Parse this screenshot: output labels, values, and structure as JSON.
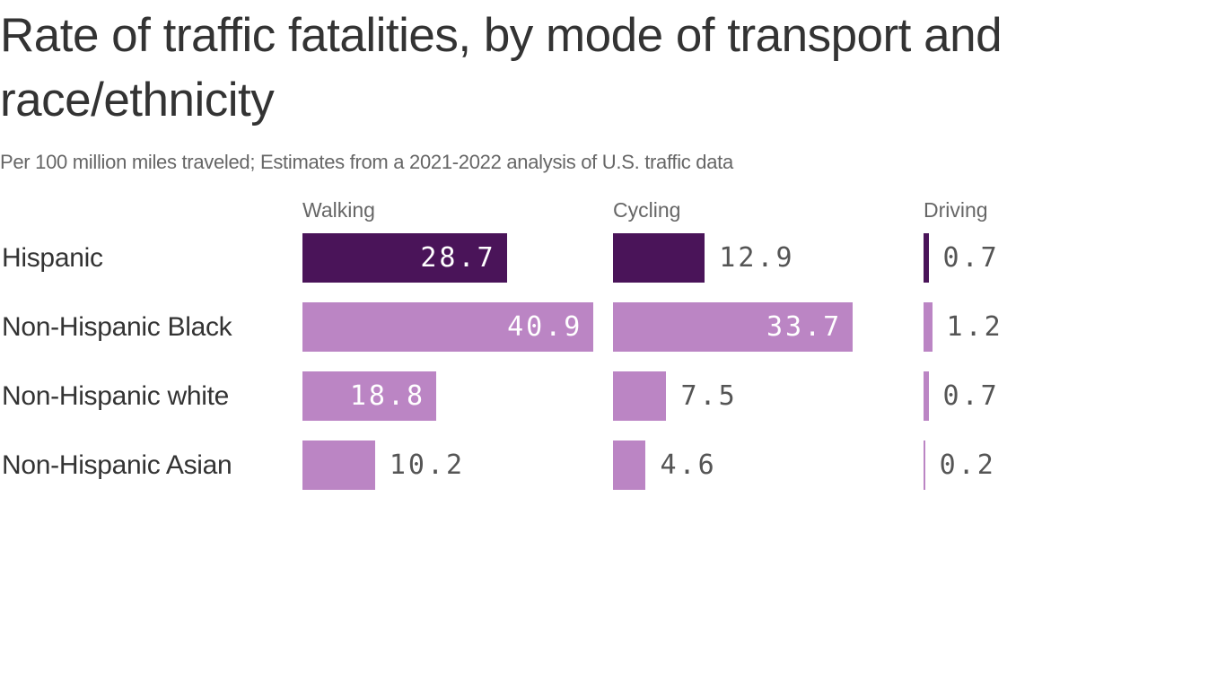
{
  "title": "Rate of traffic fatalities, by mode of transport and race/ethnicity",
  "subtitle": "Per 100 million miles traveled; Estimates from a 2021-2022 analysis of U.S. traffic data",
  "colors": {
    "highlight": "#4a1459",
    "default": "#bb85c4"
  },
  "chart_data": {
    "type": "bar",
    "orientation": "horizontal",
    "layout": "small-multiples",
    "title": "Rate of traffic fatalities, by mode of transport and race/ethnicity",
    "subtitle": "Per 100 million miles traveled; Estimates from a 2021-2022 analysis of U.S. traffic data",
    "categories": [
      "Hispanic",
      "Non-Hispanic Black",
      "Non-Hispanic white",
      "Non-Hispanic Asian"
    ],
    "highlighted_category": "Hispanic",
    "series": [
      {
        "name": "Walking",
        "values": [
          28.7,
          40.9,
          18.8,
          10.2
        ]
      },
      {
        "name": "Cycling",
        "values": [
          12.9,
          33.7,
          7.5,
          4.6
        ]
      },
      {
        "name": "Driving",
        "values": [
          0.7,
          1.2,
          0.7,
          0.2
        ]
      }
    ],
    "labels": [
      [
        "28.7",
        "40.9",
        "18.8",
        "10.2"
      ],
      [
        "12.9",
        "33.7",
        "7.5",
        "4.6"
      ],
      [
        "0.7",
        "1.2",
        "0.7",
        "0.2"
      ]
    ],
    "xlabel": "",
    "ylabel": "",
    "xlim": [
      0,
      41
    ],
    "grid": false,
    "legend": "none"
  }
}
